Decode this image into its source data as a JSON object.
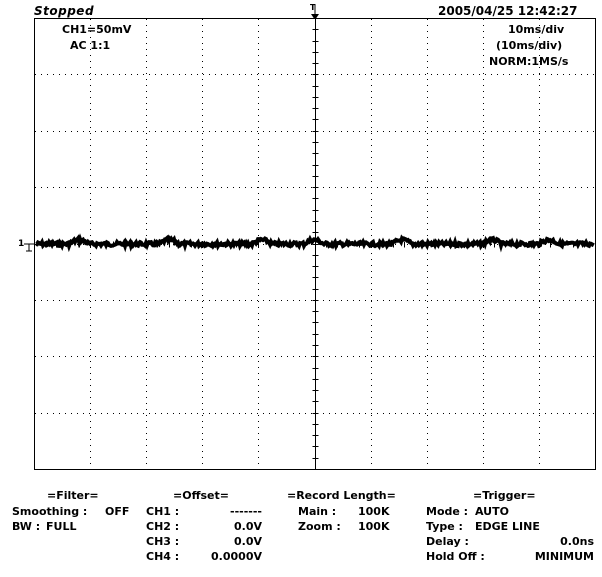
{
  "status": {
    "state": "Stopped",
    "datetime": "2005/04/25  12:42:27"
  },
  "channel": {
    "label": "CH1=50mV",
    "coupling": "AC  1:1",
    "marker": "1"
  },
  "timebase": {
    "div": "10ms/div",
    "div_paren": "(10ms/div)",
    "sample": "NORM:1MS/s"
  },
  "trigger_marker": "T",
  "filter": {
    "title": "=Filter=",
    "smoothing_label": "Smoothing :",
    "smoothing_value": "OFF",
    "bw_label": "BW :",
    "bw_value": "FULL"
  },
  "offset": {
    "title": "=Offset=",
    "rows": [
      {
        "ch": "CH1 :",
        "val": "-------"
      },
      {
        "ch": "CH2 :",
        "val": "0.0V"
      },
      {
        "ch": "CH3 :",
        "val": "0.0V"
      },
      {
        "ch": "CH4 :",
        "val": "0.0000V"
      }
    ]
  },
  "record": {
    "title": "=Record  Length=",
    "main_label": "Main :",
    "main_value": "100K",
    "zoom_label": "Zoom :",
    "zoom_value": "100K"
  },
  "trigger": {
    "title": "=Trigger=",
    "mode_label": "Mode :",
    "mode_value": "AUTO",
    "type_label": "Type :",
    "type_value": "EDGE  LINE",
    "delay_label": "Delay :",
    "delay_value": "0.0ns",
    "holdoff_label": "Hold  Off :",
    "holdoff_value": "MINIMUM"
  }
}
